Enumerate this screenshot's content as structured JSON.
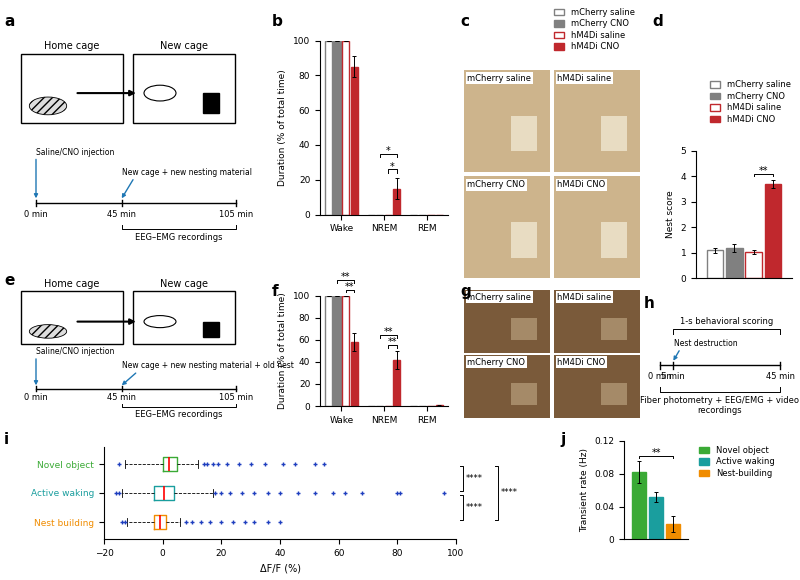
{
  "chart_data": [
    {
      "panel": "b",
      "type": "bar",
      "y_label": "Duration (% of total time)",
      "categories": [
        "Wake",
        "NREM",
        "REM"
      ],
      "series": [
        {
          "name": "mCherry saline",
          "color": "#808080",
          "values": [
            100,
            0,
            0
          ],
          "errors": [
            0,
            0,
            0
          ]
        },
        {
          "name": "mCherry CNO",
          "color": "#808080",
          "values": [
            100,
            0,
            0
          ],
          "errors": [
            0,
            0,
            0
          ]
        },
        {
          "name": "hM4Di saline",
          "color": "#c0282d",
          "values": [
            100,
            0,
            0
          ],
          "errors": [
            0,
            0,
            0
          ]
        },
        {
          "name": "hM4Di CNO",
          "color": "#c0282d",
          "values": [
            85,
            15,
            0
          ],
          "errors": [
            6,
            6,
            0
          ]
        }
      ],
      "ylim": [
        0,
        100
      ],
      "yticks": [
        0,
        20,
        40,
        60,
        80,
        100
      ],
      "legend": "upper right",
      "significance": [
        {
          "label": "*",
          "category": "NREM",
          "between": [
            "hM4Di saline",
            "hM4Di CNO"
          ]
        },
        {
          "label": "*",
          "category": "NREM",
          "between": [
            "mCherry CNO",
            "hM4Di CNO"
          ]
        }
      ]
    },
    {
      "panel": "d",
      "type": "bar",
      "y_label": "Nest score",
      "categories": [
        null
      ],
      "series": [
        {
          "name": "mCherry saline",
          "color": "#808080",
          "values": [
            1.1
          ],
          "errors": [
            0.1
          ]
        },
        {
          "name": "mCherry CNO",
          "color": "#808080",
          "values": [
            1.2
          ],
          "errors": [
            0.15
          ]
        },
        {
          "name": "hM4Di saline",
          "color": "#c0282d",
          "values": [
            1.05
          ],
          "errors": [
            0.08
          ]
        },
        {
          "name": "hM4Di CNO",
          "color": "#c0282d",
          "values": [
            3.7
          ],
          "errors": [
            0.15
          ]
        }
      ],
      "ylim": [
        0,
        5
      ],
      "yticks": [
        0,
        1,
        2,
        3,
        4,
        5
      ],
      "legend": "upper right",
      "significance": [
        {
          "label": "**",
          "category": null,
          "between": [
            "hM4Di saline",
            "hM4Di CNO"
          ]
        }
      ]
    },
    {
      "panel": "f",
      "type": "bar",
      "y_label": "Duration (% of total time)",
      "categories": [
        "Wake",
        "NREM",
        "REM"
      ],
      "series": [
        {
          "name": "mCherry saline",
          "color": "#808080",
          "values": [
            100,
            0,
            0
          ],
          "errors": [
            0,
            0,
            0
          ]
        },
        {
          "name": "mCherry CNO",
          "color": "#808080",
          "values": [
            100,
            0,
            0
          ],
          "errors": [
            0,
            0,
            0
          ]
        },
        {
          "name": "hM4Di saline",
          "color": "#c0282d",
          "values": [
            100,
            0,
            0
          ],
          "errors": [
            0,
            0,
            0
          ]
        },
        {
          "name": "hM4Di CNO",
          "color": "#c0282d",
          "values": [
            58,
            42,
            0.5
          ],
          "errors": [
            8,
            8,
            0.3
          ]
        }
      ],
      "ylim": [
        0,
        100
      ],
      "yticks": [
        0,
        20,
        40,
        60,
        80,
        100
      ],
      "significance": [
        {
          "label": "**",
          "category": "Wake",
          "between": [
            "hM4Di saline",
            "hM4Di CNO"
          ]
        },
        {
          "label": "**",
          "category": "Wake",
          "between": [
            "mCherry CNO",
            "hM4Di CNO"
          ]
        },
        {
          "label": "**",
          "category": "NREM",
          "between": [
            "hM4Di saline",
            "hM4Di CNO"
          ]
        },
        {
          "label": "**",
          "category": "NREM",
          "between": [
            "mCherry CNO",
            "hM4Di CNO"
          ]
        }
      ]
    },
    {
      "panel": "i",
      "type": "box",
      "orientation": "horizontal",
      "x_label": "ΔF/F (%)",
      "categories": [
        "Novel object",
        "Active waking",
        "Nest building"
      ],
      "colors": [
        "#3aaa35",
        "#1a9e9e",
        "#f08c00"
      ],
      "boxes": [
        {
          "q1": 0,
          "med": 2,
          "q3": 5,
          "whislo": -13,
          "whishi": 12,
          "fliers": [
            -15,
            14,
            15,
            17,
            19,
            22,
            26,
            30,
            35,
            41,
            45,
            52,
            55
          ]
        },
        {
          "q1": -3,
          "med": 0.5,
          "q3": 4,
          "whislo": -14,
          "whishi": 17,
          "fliers": [
            -16,
            -15,
            18,
            20,
            23,
            27,
            31,
            36,
            40,
            46,
            52,
            58,
            62,
            68,
            80,
            81,
            96
          ]
        },
        {
          "q1": -3,
          "med": -1,
          "q3": 1,
          "whislo": -12,
          "whishi": 6,
          "fliers": [
            -14,
            -13,
            8,
            10,
            13,
            16,
            20,
            24,
            28,
            31,
            36,
            40
          ]
        }
      ],
      "xlim": [
        -20,
        100
      ],
      "xticks": [
        {
          "value": -20,
          "label": "−20"
        },
        0,
        20,
        40,
        60,
        80,
        100
      ],
      "significance": [
        {
          "label": "****",
          "between": [
            "Novel object",
            "Active waking"
          ]
        },
        {
          "label": "****",
          "between": [
            "Active waking",
            "Nest building"
          ]
        },
        {
          "label": "****",
          "between": [
            "Novel object",
            "Nest building"
          ]
        }
      ]
    },
    {
      "panel": "j",
      "type": "bar",
      "y_label": "Transient rate (Hz)",
      "categories": [
        null
      ],
      "series": [
        {
          "name": "Novel object",
          "color": "#3aaa35",
          "values": [
            0.082
          ],
          "errors": [
            0.013
          ]
        },
        {
          "name": "Active waking",
          "color": "#1a9e9e",
          "values": [
            0.052
          ],
          "errors": [
            0.006
          ]
        },
        {
          "name": "Nest-building",
          "color": "#f08c00",
          "values": [
            0.019
          ],
          "errors": [
            0.01
          ]
        }
      ],
      "ylim": [
        0,
        0.12
      ],
      "yticks": [
        0,
        0.04,
        0.08,
        0.12
      ],
      "legend": "upper left",
      "significance": [
        {
          "label": "**",
          "category": null,
          "between": [
            "Novel object",
            "Nest-building"
          ]
        }
      ]
    }
  ],
  "schematics": [
    {
      "panel": "a",
      "cages": [
        "Home cage",
        "New cage"
      ],
      "timeline": {
        "ticks": [
          {
            "value": 0,
            "label": "0 min"
          },
          {
            "value": 45,
            "label": "45 min"
          },
          {
            "value": 105,
            "label": "105 min"
          }
        ],
        "events": [
          {
            "at": 0,
            "label": "Saline/CNO injection"
          },
          {
            "at": 45,
            "label": "New cage + new nesting material"
          }
        ],
        "spans_below": [
          {
            "from": 45,
            "to": 105,
            "label": "EEG–EMG recordings"
          }
        ]
      }
    },
    {
      "panel": "c",
      "photos": [
        "mCherry saline",
        "hM4Di saline",
        "mCherry CNO",
        "hM4Di CNO"
      ]
    },
    {
      "panel": "e",
      "cages": [
        "Home cage",
        "New cage"
      ],
      "timeline": {
        "ticks": [
          {
            "value": 0,
            "label": "0 min"
          },
          {
            "value": 45,
            "label": "45 min"
          },
          {
            "value": 105,
            "label": "105 min"
          }
        ],
        "events": [
          {
            "at": 0,
            "label": "Saline/CNO injection"
          },
          {
            "at": 45,
            "label": "New cage + new nesting material + old nest"
          }
        ],
        "spans_below": [
          {
            "from": 45,
            "to": 105,
            "label": "EEG–EMG recordings"
          }
        ]
      }
    },
    {
      "panel": "g",
      "photos": [
        "mCherry saline",
        "hM4Di saline",
        "mCherry CNO",
        "hM4Di CNO"
      ]
    },
    {
      "panel": "h",
      "timeline": {
        "ticks": [
          {
            "value": 0,
            "label": "0 min"
          },
          {
            "value": 5,
            "label": "5 min"
          },
          {
            "value": 45,
            "label": "45 min"
          }
        ],
        "events": [
          {
            "at": 5,
            "label": "Nest destruction"
          }
        ],
        "spans_above": [
          {
            "from": 5,
            "to": 45,
            "label": "1-s behavioral scoring"
          }
        ],
        "spans_below": [
          {
            "from": 0,
            "to": 45,
            "label": "Fiber photometry + EEG/EMG + video recordings"
          }
        ]
      }
    }
  ]
}
